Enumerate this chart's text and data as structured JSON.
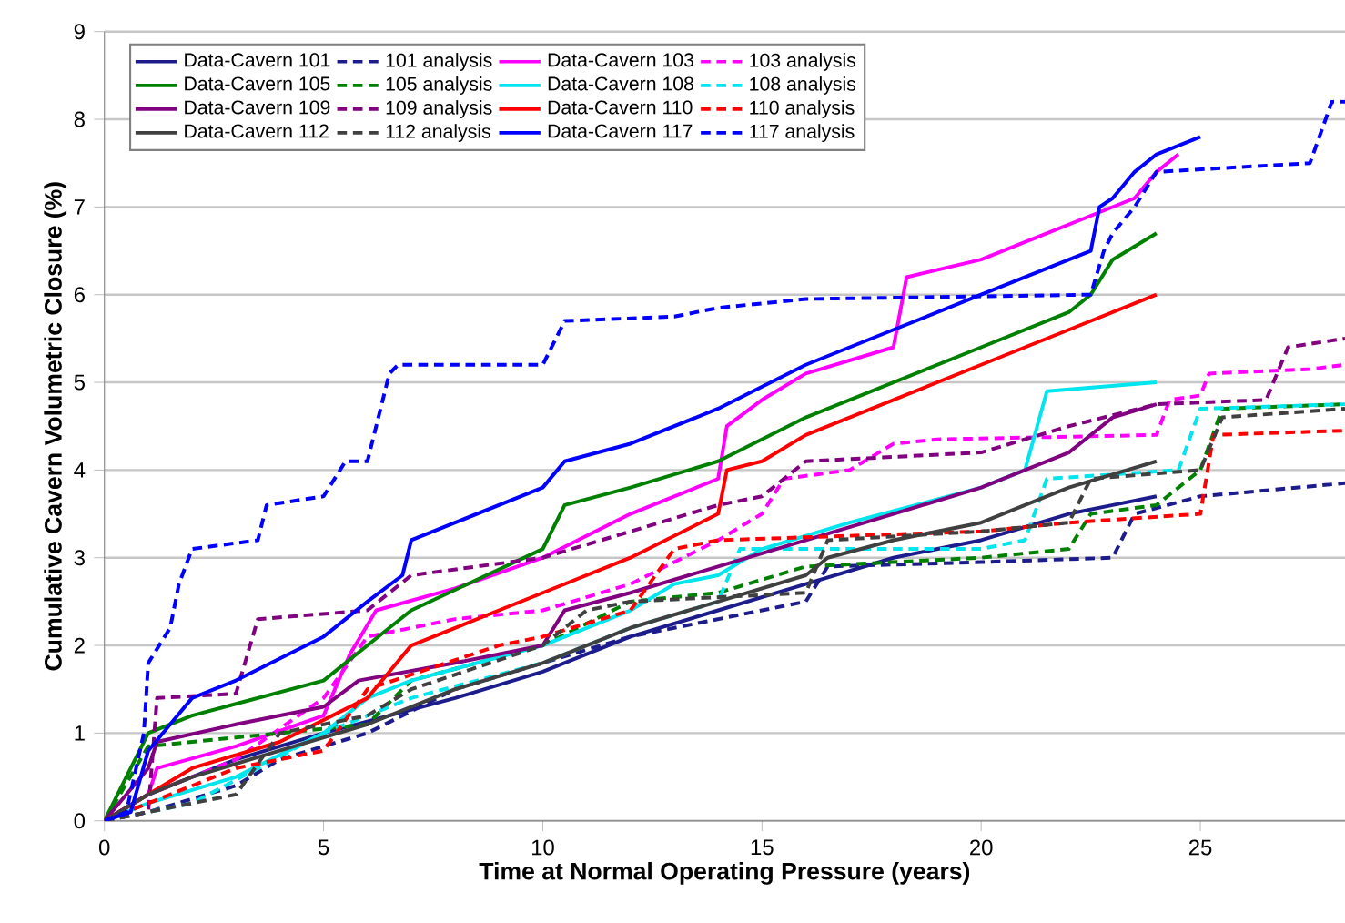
{
  "chart_data": {
    "type": "line",
    "xlabel": "Time at Normal Operating Pressure (years)",
    "ylabel": "Cumulative Cavern Volumetric Closure (%)",
    "xlim": [
      0,
      28.3
    ],
    "ylim": [
      0,
      9
    ],
    "xticks": [
      0,
      5,
      10,
      15,
      20,
      25
    ],
    "yticks": [
      0,
      1,
      2,
      3,
      4,
      5,
      6,
      7,
      8,
      9
    ],
    "grid": "y",
    "legend": "top left",
    "marker": "none",
    "series": [
      {
        "name": "Data-Cavern 101",
        "color": "#1c1c8c",
        "line_style": "solid",
        "x": [
          0,
          1,
          3,
          5,
          8,
          10,
          12,
          14,
          16,
          18,
          20,
          22,
          23,
          24
        ],
        "values": [
          0,
          0.3,
          0.7,
          1.0,
          1.4,
          1.7,
          2.1,
          2.4,
          2.7,
          3.0,
          3.2,
          3.5,
          3.6,
          3.7
        ]
      },
      {
        "name": "101 analysis",
        "color": "#1c1c8c",
        "line_style": "dashed",
        "x": [
          0,
          1,
          3,
          4,
          6,
          8,
          10,
          12,
          14,
          16,
          16.5,
          20,
          23,
          23.5,
          25,
          28.3
        ],
        "values": [
          0,
          0.1,
          0.4,
          0.7,
          1.0,
          1.5,
          1.8,
          2.1,
          2.3,
          2.5,
          2.9,
          2.95,
          3.0,
          3.5,
          3.7,
          3.85
        ]
      },
      {
        "name": "Data-Cavern 103",
        "color": "#ff00ff",
        "line_style": "solid",
        "x": [
          0,
          1,
          1.2,
          3,
          5,
          5.6,
          6.2,
          8,
          10,
          12,
          14,
          14.2,
          15,
          16,
          18,
          18.3,
          20,
          22.5,
          23.5,
          24,
          24.5
        ],
        "values": [
          0,
          0.3,
          0.6,
          0.85,
          1.2,
          1.9,
          2.4,
          2.65,
          3.0,
          3.5,
          3.9,
          4.5,
          4.8,
          5.1,
          5.4,
          6.2,
          6.4,
          6.9,
          7.1,
          7.4,
          7.6
        ]
      },
      {
        "name": "103 analysis",
        "color": "#ff00ff",
        "line_style": "dashed",
        "x": [
          0,
          1,
          3,
          5,
          6,
          8,
          10,
          12,
          14,
          15,
          15.5,
          17,
          18,
          19,
          24,
          24.3,
          25,
          25.2,
          27.5,
          28.3
        ],
        "values": [
          0,
          0.3,
          0.7,
          1.4,
          2.1,
          2.3,
          2.4,
          2.7,
          3.2,
          3.5,
          3.9,
          4.0,
          4.3,
          4.35,
          4.4,
          4.8,
          4.85,
          5.1,
          5.15,
          5.2
        ]
      },
      {
        "name": "Data-Cavern 105",
        "color": "#008000",
        "line_style": "solid",
        "x": [
          0,
          1,
          2,
          5,
          6,
          7,
          10,
          10.5,
          12,
          14,
          16,
          18,
          20,
          22,
          22.5,
          23,
          24
        ],
        "values": [
          0,
          1.0,
          1.2,
          1.6,
          2.0,
          2.4,
          3.1,
          3.6,
          3.8,
          4.1,
          4.6,
          5.0,
          5.4,
          5.8,
          6.0,
          6.4,
          6.7
        ]
      },
      {
        "name": "105 analysis",
        "color": "#008000",
        "line_style": "dashed",
        "x": [
          0,
          1,
          3,
          6,
          7,
          10,
          12,
          14,
          16,
          20,
          22,
          22.5,
          24,
          25,
          25.5,
          28.3
        ],
        "values": [
          0,
          0.85,
          0.95,
          1.1,
          1.6,
          2.0,
          2.5,
          2.6,
          2.9,
          3.0,
          3.1,
          3.5,
          3.6,
          4.0,
          4.7,
          4.75
        ]
      },
      {
        "name": "Data-Cavern 108",
        "color": "#00e5ee",
        "line_style": "solid",
        "x": [
          0,
          1,
          3,
          5,
          6,
          7,
          10,
          12,
          13,
          14,
          15,
          17,
          20,
          21,
          21.5,
          24
        ],
        "values": [
          0,
          0.2,
          0.5,
          1.0,
          1.4,
          1.6,
          2.0,
          2.4,
          2.7,
          2.8,
          3.1,
          3.4,
          3.8,
          4.0,
          4.9,
          5.0
        ]
      },
      {
        "name": "108 analysis",
        "color": "#00e5ee",
        "line_style": "dashed",
        "x": [
          0,
          2,
          5,
          7,
          10,
          12,
          14,
          14.5,
          20,
          21,
          21.5,
          23,
          24.5,
          25,
          28.3
        ],
        "values": [
          0,
          0.2,
          1.0,
          1.4,
          1.8,
          2.2,
          2.5,
          3.1,
          3.1,
          3.2,
          3.9,
          3.95,
          4.0,
          4.7,
          4.75
        ]
      },
      {
        "name": "Data-Cavern 109",
        "color": "#800080",
        "line_style": "solid",
        "x": [
          0,
          1,
          1.2,
          3,
          5,
          5.8,
          8,
          10,
          10.5,
          12,
          14,
          16,
          18,
          20,
          22,
          23,
          24
        ],
        "values": [
          0,
          0.6,
          0.9,
          1.1,
          1.3,
          1.6,
          1.8,
          2.0,
          2.4,
          2.6,
          2.9,
          3.2,
          3.5,
          3.8,
          4.2,
          4.6,
          4.75
        ]
      },
      {
        "name": "109 analysis",
        "color": "#800080",
        "line_style": "dashed",
        "x": [
          0,
          1,
          1.2,
          3,
          3.5,
          6,
          7,
          10,
          12,
          14,
          15,
          16,
          20,
          22,
          24,
          26.5,
          27,
          28.3
        ],
        "values": [
          0,
          0.1,
          1.4,
          1.45,
          2.3,
          2.4,
          2.8,
          3.0,
          3.3,
          3.6,
          3.7,
          4.1,
          4.2,
          4.5,
          4.75,
          4.8,
          5.4,
          5.5
        ]
      },
      {
        "name": "Data-Cavern 110",
        "color": "#ff0000",
        "line_style": "solid",
        "x": [
          0,
          1,
          2,
          4,
          6,
          7,
          8,
          10,
          12,
          14,
          14.2,
          15,
          16,
          18,
          20,
          22,
          24
        ],
        "values": [
          0,
          0.3,
          0.6,
          0.9,
          1.4,
          2.0,
          2.2,
          2.6,
          3.0,
          3.5,
          4.0,
          4.1,
          4.4,
          4.8,
          5.2,
          5.6,
          6.0
        ]
      },
      {
        "name": "110 analysis",
        "color": "#ff0000",
        "line_style": "dashed",
        "x": [
          0,
          1,
          3,
          5,
          6,
          9,
          10,
          12,
          13,
          14,
          20,
          22,
          25,
          25.3,
          28.3
        ],
        "values": [
          0,
          0.2,
          0.6,
          0.8,
          1.5,
          2.0,
          2.1,
          2.4,
          3.1,
          3.2,
          3.3,
          3.4,
          3.5,
          4.4,
          4.45
        ]
      },
      {
        "name": "Data-Cavern 112",
        "color": "#404040",
        "line_style": "solid",
        "x": [
          0,
          0.5,
          1,
          2,
          4,
          6,
          8,
          10,
          12,
          14,
          16,
          16.5,
          18,
          20,
          22,
          23,
          24
        ],
        "values": [
          0,
          0.15,
          0.3,
          0.5,
          0.8,
          1.1,
          1.5,
          1.8,
          2.2,
          2.5,
          2.8,
          3.0,
          3.2,
          3.4,
          3.8,
          3.95,
          4.1
        ]
      },
      {
        "name": "112 analysis",
        "color": "#404040",
        "line_style": "dashed",
        "x": [
          0,
          1,
          3,
          4,
          6,
          7,
          10,
          11,
          12,
          16,
          16.5,
          20,
          22,
          22.5,
          25,
          25.5,
          28.3
        ],
        "values": [
          0,
          0.1,
          0.3,
          1.0,
          1.2,
          1.5,
          2.0,
          2.4,
          2.5,
          2.6,
          3.2,
          3.3,
          3.4,
          3.9,
          4.0,
          4.6,
          4.7
        ]
      },
      {
        "name": "Data-Cavern 117",
        "color": "#0000ff",
        "line_style": "solid",
        "x": [
          0,
          0.6,
          1,
          1.5,
          2,
          3,
          4,
          5,
          6,
          6.8,
          7,
          8,
          10,
          10.5,
          12,
          14,
          16,
          18,
          20,
          22.5,
          22.7,
          23,
          23.5,
          24,
          25
        ],
        "values": [
          0,
          0.1,
          0.8,
          1.1,
          1.4,
          1.6,
          1.85,
          2.1,
          2.5,
          2.8,
          3.2,
          3.4,
          3.8,
          4.1,
          4.3,
          4.7,
          5.2,
          5.6,
          6.0,
          6.5,
          7.0,
          7.1,
          7.4,
          7.6,
          7.8
        ]
      },
      {
        "name": "117 analysis",
        "color": "#0000ff",
        "line_style": "dashed",
        "x": [
          0,
          0.5,
          0.9,
          1,
          1.5,
          1.7,
          2,
          3.5,
          3.7,
          5,
          5.5,
          6,
          6.5,
          6.7,
          10,
          10.5,
          13,
          14,
          16,
          22.5,
          22.8,
          23,
          23.5,
          24,
          27.5,
          28,
          28.3
        ],
        "values": [
          0,
          0.1,
          1.0,
          1.8,
          2.2,
          2.7,
          3.1,
          3.2,
          3.6,
          3.7,
          4.1,
          4.1,
          5.1,
          5.2,
          5.2,
          5.7,
          5.75,
          5.85,
          5.95,
          6.0,
          6.5,
          6.7,
          7.0,
          7.4,
          7.5,
          8.2,
          8.2
        ]
      }
    ]
  }
}
